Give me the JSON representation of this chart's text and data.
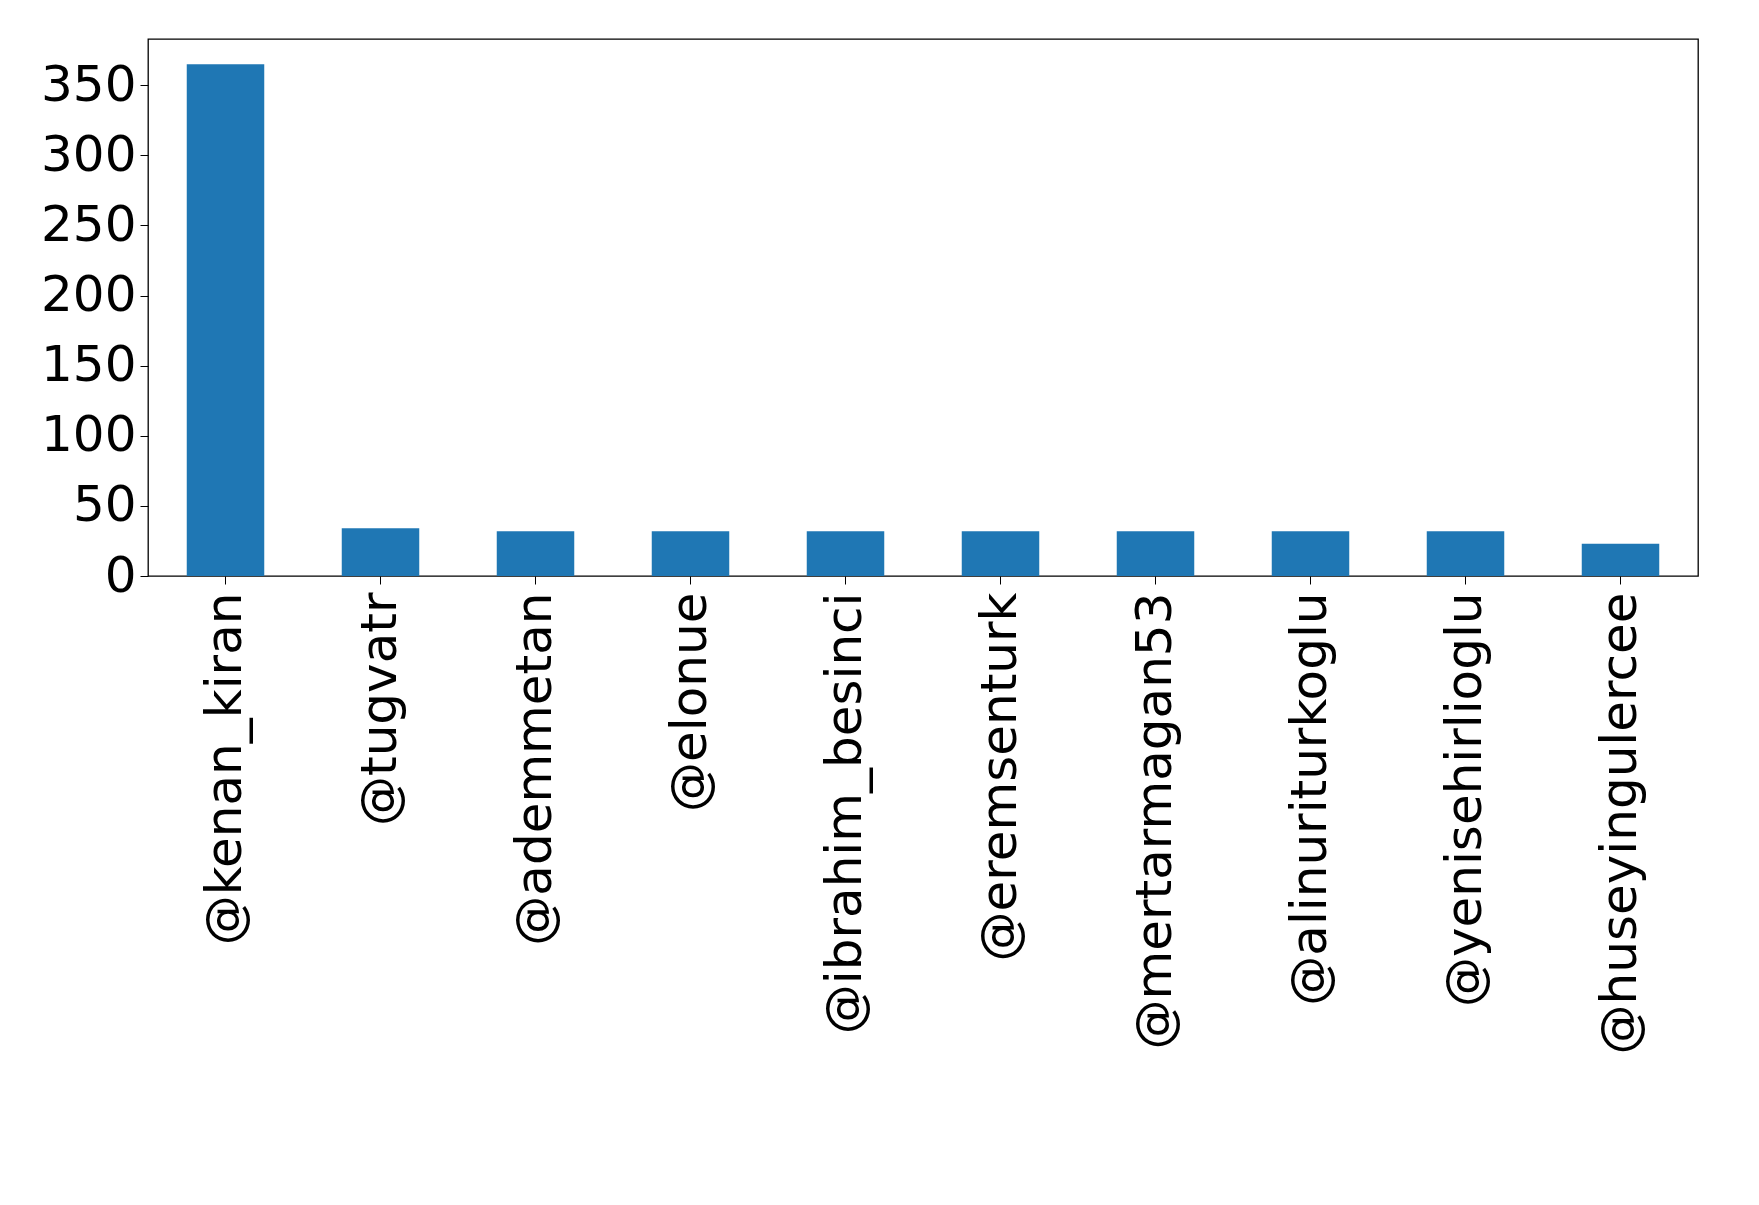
{
  "chart_data": {
    "type": "bar",
    "categories": [
      "@kenan_kiran",
      "@tugvatr",
      "@ademmetan",
      "@elonue",
      "@ibrahim_besinci",
      "@eremsenturk",
      "@mertarmagan53",
      "@alinuriturkoglu",
      "@yenisehirlioglu",
      "@huseyingulercee"
    ],
    "values": [
      365,
      34,
      32,
      32,
      32,
      32,
      32,
      32,
      32,
      23
    ],
    "color": "#1f77b4",
    "ylim": [
      0,
      383
    ],
    "yticks": [
      0,
      50,
      100,
      150,
      200,
      250,
      300,
      350
    ],
    "grid": false,
    "legend": false
  }
}
